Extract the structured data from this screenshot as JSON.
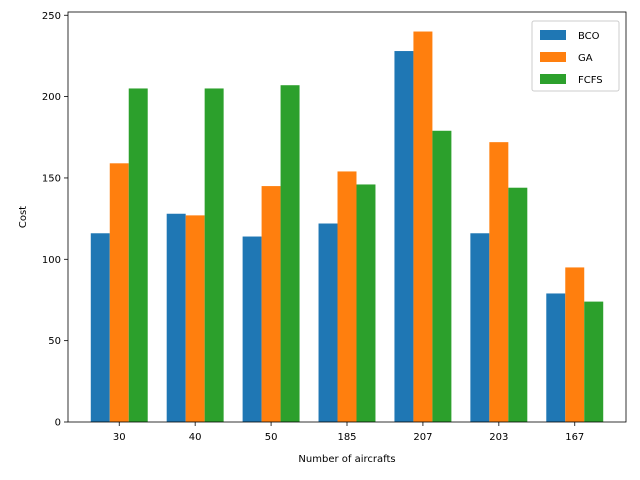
{
  "chart_data": {
    "type": "bar",
    "title": "",
    "xlabel": "Number of aircrafts",
    "ylabel": "Cost",
    "categories": [
      "30",
      "40",
      "50",
      "185",
      "207",
      "203",
      "167"
    ],
    "series": [
      {
        "name": "BCO",
        "color": "#1f77b4",
        "values": [
          116,
          128,
          114,
          122,
          228,
          116,
          79
        ]
      },
      {
        "name": "GA",
        "color": "#ff7f0e",
        "values": [
          159,
          127,
          145,
          154,
          240,
          172,
          95
        ]
      },
      {
        "name": "FCFS",
        "color": "#2ca02c",
        "values": [
          205,
          205,
          207,
          146,
          179,
          144,
          74
        ]
      }
    ],
    "ylim": [
      0,
      252
    ],
    "yticks": [
      0,
      50,
      100,
      150,
      200,
      250
    ],
    "grid": false,
    "legend_position": "top-right"
  }
}
